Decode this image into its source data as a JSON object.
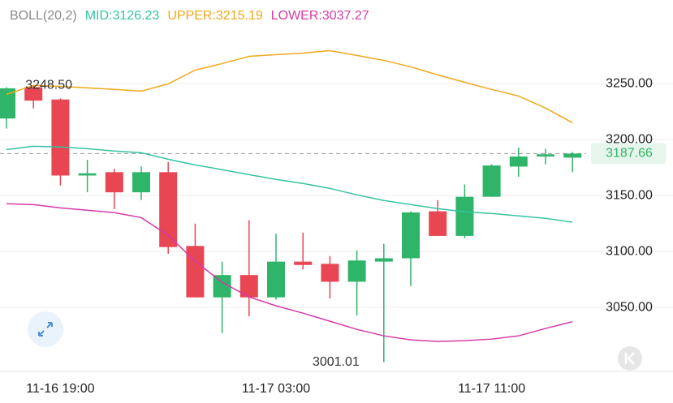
{
  "chart_data": {
    "type": "candlestick",
    "indicator": "BOLL(20,2)",
    "categories": [
      null,
      null,
      "11-16 19:00",
      null,
      null,
      null,
      null,
      null,
      null,
      null,
      "11-17 03:00",
      null,
      null,
      null,
      null,
      null,
      null,
      null,
      "11-17 11:00",
      null,
      null,
      null
    ],
    "open": [
      3219,
      3247,
      3236,
      3168,
      3171,
      3153,
      3171,
      3105,
      3059,
      3079,
      3059,
      3091,
      3089,
      3073,
      3091,
      3094,
      3136,
      3114,
      3149,
      3176,
      3185,
      3184
    ],
    "high": [
      3247,
      3248.5,
      3237,
      3182,
      3174,
      3176,
      3180,
      3125,
      3091,
      3128,
      3116,
      3117,
      3096,
      3101,
      3107,
      3136,
      3146,
      3160,
      3178,
      3193,
      3192,
      3189
    ],
    "low": [
      3210,
      3228,
      3159,
      3153,
      3138,
      3146,
      3098,
      3059,
      3027,
      3042,
      3057,
      3084,
      3058,
      3043,
      3001.01,
      3069,
      3114,
      3112,
      3149,
      3167,
      3178,
      3171
    ],
    "close": [
      3246,
      3235,
      3168,
      3170,
      3153,
      3171,
      3104,
      3059,
      3079,
      3059,
      3091,
      3088,
      3073,
      3092,
      3094,
      3135,
      3114,
      3149,
      3177,
      3185,
      3187,
      3187.66
    ],
    "up_color": "#2fb56a",
    "down_color": "#e84653",
    "series": [
      {
        "name": "MID:3126.23",
        "color": "#35c3a3",
        "values": [
          3191.3,
          3194.2,
          3193.5,
          3192,
          3189.9,
          3188.4,
          3182.6,
          3177.5,
          3173.2,
          3168.8,
          3164.5,
          3160.9,
          3156.5,
          3150.7,
          3145.7,
          3142,
          3138.4,
          3135.5,
          3134.1,
          3131.9,
          3129.7,
          3126.23
        ]
      },
      {
        "name": "UPPER:3215.19",
        "color": "#f0a81c",
        "values": [
          3240.6,
          3248.6,
          3247.8,
          3246.4,
          3245,
          3243.5,
          3250,
          3262.3,
          3268.1,
          3274.6,
          3276.1,
          3277.5,
          3279.7,
          3275.4,
          3271,
          3265.2,
          3258,
          3251.4,
          3245,
          3239.1,
          3228.3,
          3215.19
        ]
      },
      {
        "name": "LOWER:3037.27",
        "color": "#d43aa8",
        "values": [
          3142.8,
          3142,
          3139.1,
          3137,
          3134.8,
          3130.4,
          3114.5,
          3091.3,
          3072.5,
          3059.4,
          3051.5,
          3044.9,
          3037.7,
          3030.4,
          3024.6,
          3021,
          3019.6,
          3020.3,
          3021.7,
          3024.6,
          3031.2,
          3037.27
        ]
      }
    ],
    "annotations": [
      {
        "label": "3248.50",
        "value": 3248.5
      },
      {
        "label": "3001.01",
        "value": 3001.01
      }
    ],
    "last_price": {
      "value": 3187.66,
      "label": "3187.66"
    },
    "ylim": [
      2995,
      3325
    ],
    "yticks": [
      {
        "value": 3050,
        "label": "3050.00"
      },
      {
        "value": 3100,
        "label": "3100.00"
      },
      {
        "value": 3150,
        "label": "3150.00"
      },
      {
        "value": 3200,
        "label": "3200.00"
      },
      {
        "value": 3250,
        "label": "3250.00"
      }
    ],
    "grid": true
  }
}
